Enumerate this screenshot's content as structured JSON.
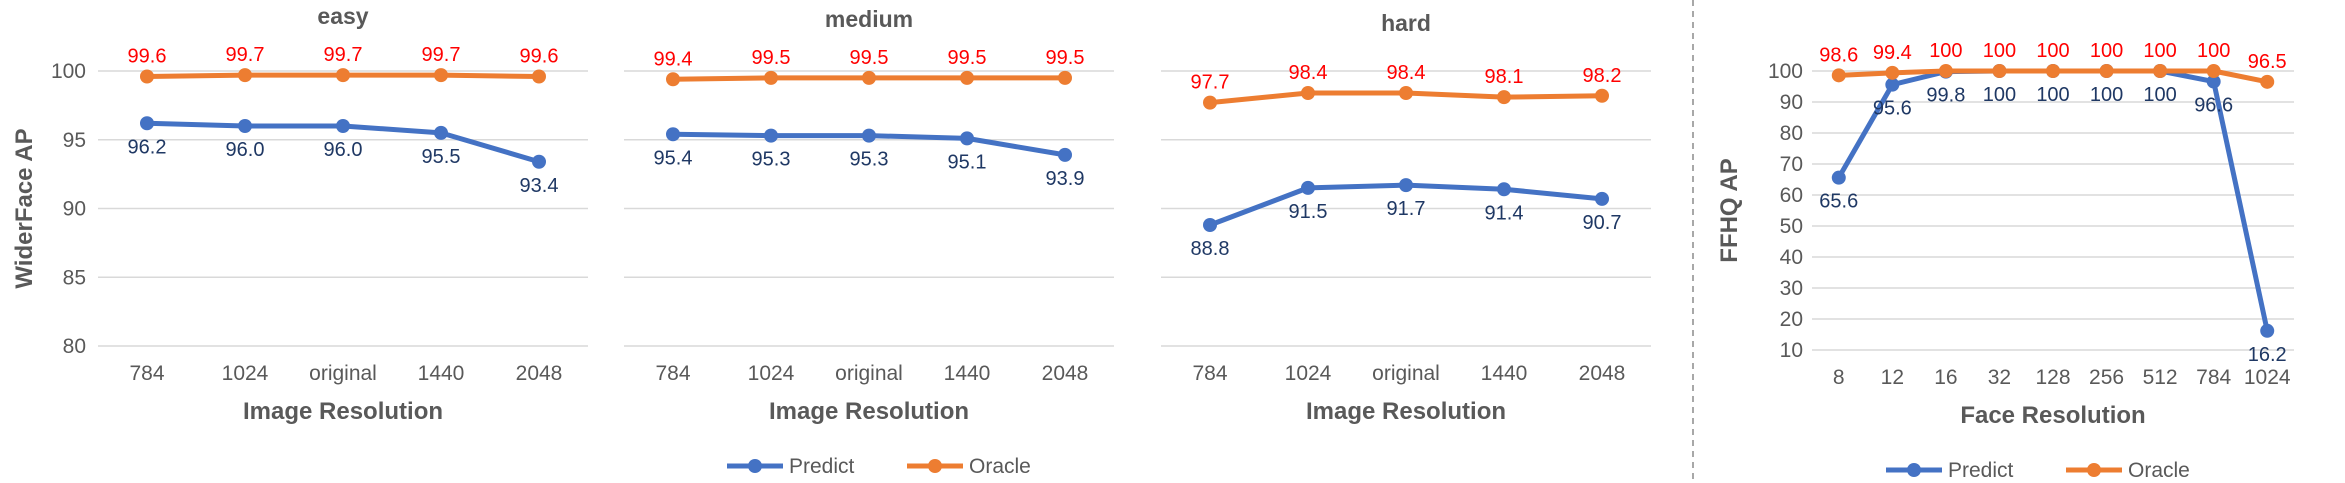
{
  "colors": {
    "predict": "#4472c4",
    "oracle": "#ed7d31",
    "oracle_label": "#ff0000",
    "predict_label": "#1f3864"
  },
  "chart_data": [
    {
      "type": "line",
      "title": "easy",
      "xlabel": "Image Resolution",
      "ylabel": "WiderFace AP",
      "categories": [
        "784",
        "1024",
        "original",
        "1440",
        "2048"
      ],
      "yticks": [
        80,
        85,
        90,
        95,
        100
      ],
      "ylim": [
        80,
        100
      ],
      "series": [
        {
          "name": "Predict",
          "values": [
            96.2,
            96.0,
            96.0,
            95.5,
            93.4
          ],
          "labels": [
            "96.2",
            "96.0",
            "96.0",
            "95.5",
            "93.4"
          ]
        },
        {
          "name": "Oracle",
          "values": [
            99.6,
            99.7,
            99.7,
            99.7,
            99.6
          ],
          "labels": [
            "99.6",
            "99.7",
            "99.7",
            "99.7",
            "99.6"
          ]
        }
      ]
    },
    {
      "type": "line",
      "title": "medium",
      "xlabel": "Image Resolution",
      "ylabel": "",
      "categories": [
        "784",
        "1024",
        "original",
        "1440",
        "2048"
      ],
      "yticks": [
        80,
        85,
        90,
        95,
        100
      ],
      "ylim": [
        80,
        100
      ],
      "series": [
        {
          "name": "Predict",
          "values": [
            95.4,
            95.3,
            95.3,
            95.1,
            93.9
          ],
          "labels": [
            "95.4",
            "95.3",
            "95.3",
            "95.1",
            "93.9"
          ]
        },
        {
          "name": "Oracle",
          "values": [
            99.4,
            99.5,
            99.5,
            99.5,
            99.5
          ],
          "labels": [
            "99.4",
            "99.5",
            "99.5",
            "99.5",
            "99.5"
          ]
        }
      ]
    },
    {
      "type": "line",
      "title": "hard",
      "xlabel": "Image Resolution",
      "ylabel": "",
      "categories": [
        "784",
        "1024",
        "original",
        "1440",
        "2048"
      ],
      "yticks": [
        80,
        85,
        90,
        95,
        100
      ],
      "ylim": [
        80,
        100
      ],
      "series": [
        {
          "name": "Predict",
          "values": [
            88.8,
            91.5,
            91.7,
            91.4,
            90.7
          ],
          "labels": [
            "88.8",
            "91.5",
            "91.7",
            "91.4",
            "90.7"
          ]
        },
        {
          "name": "Oracle",
          "values": [
            97.7,
            98.4,
            98.4,
            98.1,
            98.2
          ],
          "labels": [
            "97.7",
            "98.4",
            "98.4",
            "98.1",
            "98.2"
          ]
        }
      ]
    },
    {
      "type": "line",
      "title": "",
      "xlabel": "Face Resolution",
      "ylabel": "FFHQ AP",
      "categories": [
        "8",
        "12",
        "16",
        "32",
        "128",
        "256",
        "512",
        "784",
        "1024"
      ],
      "yticks": [
        10,
        20,
        30,
        40,
        50,
        60,
        70,
        80,
        90,
        100
      ],
      "ylim": [
        10,
        100
      ],
      "series": [
        {
          "name": "Predict",
          "values": [
            65.6,
            95.6,
            99.8,
            100,
            100,
            100,
            100,
            96.6,
            16.2
          ],
          "labels": [
            "65.6",
            "95.6",
            "99.8",
            "100",
            "100",
            "100",
            "100",
            "96.6",
            "16.2"
          ]
        },
        {
          "name": "Oracle",
          "values": [
            98.6,
            99.4,
            100,
            100,
            100,
            100,
            100,
            100,
            96.5
          ],
          "labels": [
            "98.6",
            "99.4",
            "100",
            "100",
            "100",
            "100",
            "100",
            "100",
            "96.5"
          ]
        }
      ]
    }
  ],
  "legends": [
    {
      "items": [
        "Predict",
        "Oracle"
      ]
    },
    {
      "items": [
        "Predict",
        "Oracle"
      ]
    }
  ]
}
